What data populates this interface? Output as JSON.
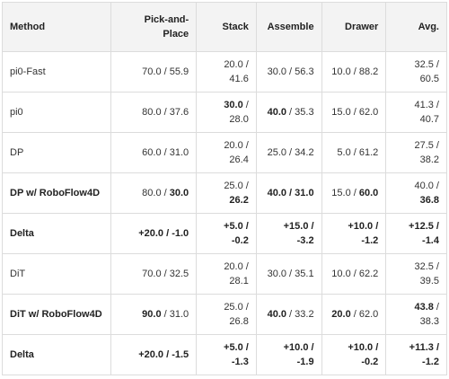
{
  "table": {
    "header": [
      "Method",
      "Pick-and-Place",
      "Stack",
      "Assemble",
      "Drawer",
      "Avg."
    ],
    "rows": [
      [
        [
          {
            "text": "pi0-Fast"
          }
        ],
        [
          {
            "text": "70.0 / 55.9"
          }
        ],
        [
          {
            "text": "20.0 / 41.6"
          }
        ],
        [
          {
            "text": "30.0 / 56.3"
          }
        ],
        [
          {
            "text": "10.0 / 88.2"
          }
        ],
        [
          {
            "text": "32.5 / 60.5"
          }
        ]
      ],
      [
        [
          {
            "text": "pi0"
          }
        ],
        [
          {
            "text": "80.0 / 37.6"
          }
        ],
        [
          {
            "text": "30.0",
            "bold": true
          },
          {
            "text": " / 28.0"
          }
        ],
        [
          {
            "text": "40.0",
            "bold": true
          },
          {
            "text": " / 35.3"
          }
        ],
        [
          {
            "text": "15.0 / 62.0"
          }
        ],
        [
          {
            "text": "41.3 / 40.7"
          }
        ]
      ],
      [
        [
          {
            "text": "DP"
          }
        ],
        [
          {
            "text": "60.0 / 31.0"
          }
        ],
        [
          {
            "text": "20.0 / 26.4"
          }
        ],
        [
          {
            "text": "25.0 / 34.2"
          }
        ],
        [
          {
            "text": "5.0 / 61.2"
          }
        ],
        [
          {
            "text": "27.5 / 38.2"
          }
        ]
      ],
      [
        [
          {
            "text": "DP w/ RoboFlow4D",
            "bold": true
          }
        ],
        [
          {
            "text": "80.0 / "
          },
          {
            "text": "30.0",
            "bold": true
          }
        ],
        [
          {
            "text": "25.0 / "
          },
          {
            "text": "26.2",
            "bold": true
          }
        ],
        [
          {
            "text": "40.0 / 31.0",
            "bold": true
          }
        ],
        [
          {
            "text": "15.0 / "
          },
          {
            "text": "60.0",
            "bold": true
          }
        ],
        [
          {
            "text": "40.0 / "
          },
          {
            "text": "36.8",
            "bold": true
          }
        ]
      ],
      [
        [
          {
            "text": "Delta",
            "bold": true
          }
        ],
        [
          {
            "text": "+20.0 / -1.0",
            "bold": true
          }
        ],
        [
          {
            "text": "+5.0 / -0.2",
            "bold": true
          }
        ],
        [
          {
            "text": "+15.0 / -3.2",
            "bold": true
          }
        ],
        [
          {
            "text": "+10.0 / -1.2",
            "bold": true
          }
        ],
        [
          {
            "text": "+12.5 / -1.4",
            "bold": true
          }
        ]
      ],
      [
        [
          {
            "text": "DiT"
          }
        ],
        [
          {
            "text": "70.0 / 32.5"
          }
        ],
        [
          {
            "text": "20.0 / 28.1"
          }
        ],
        [
          {
            "text": "30.0 / 35.1"
          }
        ],
        [
          {
            "text": "10.0 / 62.2"
          }
        ],
        [
          {
            "text": "32.5 / 39.5"
          }
        ]
      ],
      [
        [
          {
            "text": "DiT w/ RoboFlow4D",
            "bold": true
          }
        ],
        [
          {
            "text": "90.0",
            "bold": true
          },
          {
            "text": " / 31.0"
          }
        ],
        [
          {
            "text": "25.0 / 26.8"
          }
        ],
        [
          {
            "text": "40.0",
            "bold": true
          },
          {
            "text": " / 33.2"
          }
        ],
        [
          {
            "text": "20.0",
            "bold": true
          },
          {
            "text": " / 62.0"
          }
        ],
        [
          {
            "text": "43.8",
            "bold": true
          },
          {
            "text": " / 38.3"
          }
        ]
      ],
      [
        [
          {
            "text": "Delta",
            "bold": true
          }
        ],
        [
          {
            "text": "+20.0 / -1.5",
            "bold": true
          }
        ],
        [
          {
            "text": "+5.0 / -1.3",
            "bold": true
          }
        ],
        [
          {
            "text": "+10.0 / -1.9",
            "bold": true
          }
        ],
        [
          {
            "text": "+10.0 / -0.2",
            "bold": true
          }
        ],
        [
          {
            "text": "+11.3 / -1.2",
            "bold": true
          }
        ]
      ]
    ]
  }
}
